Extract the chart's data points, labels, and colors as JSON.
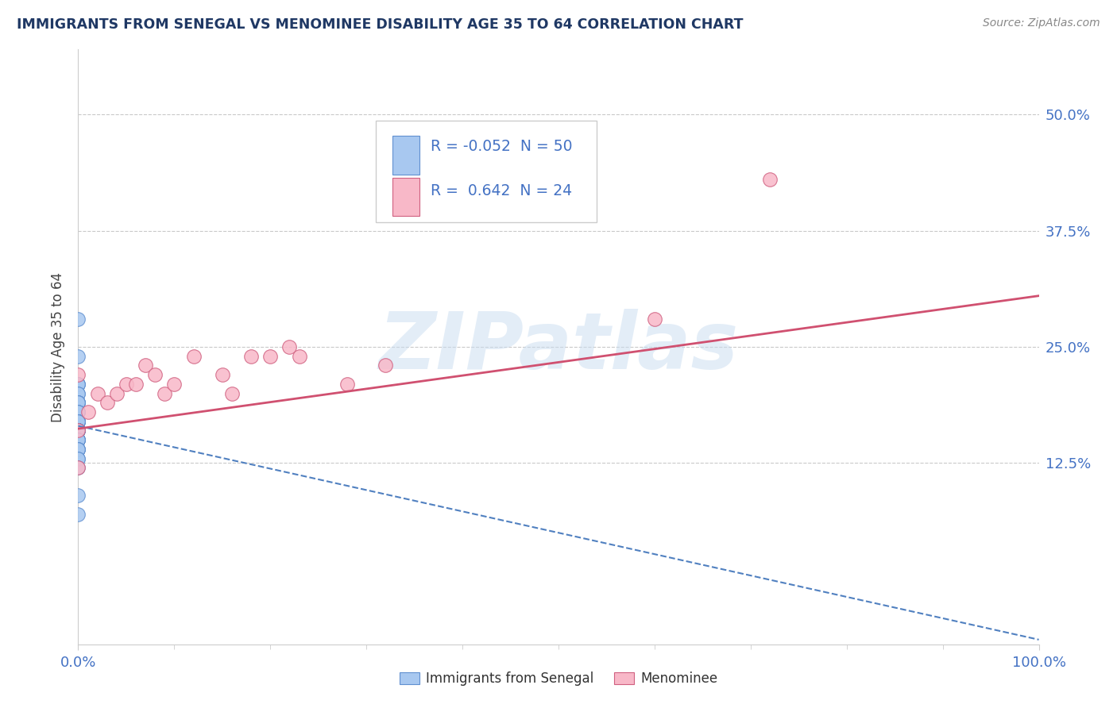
{
  "title": "IMMIGRANTS FROM SENEGAL VS MENOMINEE DISABILITY AGE 35 TO 64 CORRELATION CHART",
  "source_text": "Source: ZipAtlas.com",
  "ylabel": "Disability Age 35 to 64",
  "watermark": "ZIPatlas",
  "xlim": [
    0.0,
    1.0
  ],
  "ylim": [
    -0.07,
    0.57
  ],
  "legend_r1": "R = -0.052",
  "legend_n1": "N = 50",
  "legend_r2": "R =  0.642",
  "legend_n2": "N = 24",
  "blue_color": "#A8C8F0",
  "blue_edge_color": "#6090D0",
  "pink_color": "#F8B8C8",
  "pink_edge_color": "#D06080",
  "blue_line_color": "#5080C0",
  "pink_line_color": "#D05070",
  "title_color": "#1F3864",
  "source_color": "#888888",
  "axis_color": "#4472C4",
  "grid_color": "#BBBBBB",
  "background_color": "#FFFFFF",
  "blue_line_y0": 0.165,
  "blue_line_y1": -0.065,
  "pink_line_y0": 0.162,
  "pink_line_y1": 0.305,
  "senegal_x": [
    0.0,
    0.0,
    0.0,
    0.0,
    0.0,
    0.0,
    0.0,
    0.0,
    0.0,
    0.0,
    0.0,
    0.0,
    0.0,
    0.0,
    0.0,
    0.0,
    0.0,
    0.0,
    0.0,
    0.0,
    0.0,
    0.0,
    0.0,
    0.0,
    0.0,
    0.0,
    0.0,
    0.0,
    0.0,
    0.0,
    0.0,
    0.0,
    0.0,
    0.0,
    0.0,
    0.0,
    0.0,
    0.0,
    0.0,
    0.0,
    0.0,
    0.0,
    0.0,
    0.0,
    0.0,
    0.0,
    0.0,
    0.0,
    0.0,
    0.0
  ],
  "senegal_y": [
    0.28,
    0.24,
    0.21,
    0.21,
    0.21,
    0.2,
    0.2,
    0.19,
    0.19,
    0.19,
    0.19,
    0.19,
    0.18,
    0.18,
    0.18,
    0.18,
    0.17,
    0.17,
    0.17,
    0.17,
    0.17,
    0.17,
    0.17,
    0.17,
    0.17,
    0.16,
    0.16,
    0.16,
    0.16,
    0.16,
    0.16,
    0.16,
    0.16,
    0.16,
    0.16,
    0.15,
    0.15,
    0.15,
    0.15,
    0.15,
    0.15,
    0.14,
    0.14,
    0.14,
    0.14,
    0.13,
    0.13,
    0.12,
    0.09,
    0.07
  ],
  "menominee_x": [
    0.0,
    0.0,
    0.0,
    0.01,
    0.02,
    0.03,
    0.04,
    0.05,
    0.06,
    0.07,
    0.08,
    0.09,
    0.1,
    0.12,
    0.15,
    0.16,
    0.18,
    0.2,
    0.22,
    0.23,
    0.28,
    0.32,
    0.6,
    0.72
  ],
  "menominee_y": [
    0.22,
    0.16,
    0.12,
    0.18,
    0.2,
    0.19,
    0.2,
    0.21,
    0.21,
    0.23,
    0.22,
    0.2,
    0.21,
    0.24,
    0.22,
    0.2,
    0.24,
    0.24,
    0.25,
    0.24,
    0.21,
    0.23,
    0.28,
    0.43
  ]
}
